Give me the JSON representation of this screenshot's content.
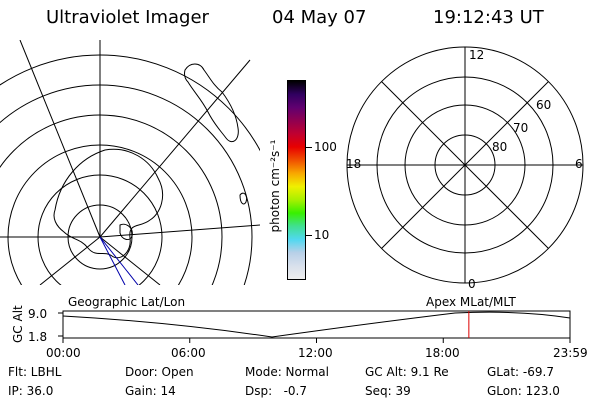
{
  "header": {
    "title": "Ultraviolet Imager",
    "date": "04 May 07",
    "time": "19:12:43 UT"
  },
  "geo_panel": {
    "label": "Geographic Lat/Lon"
  },
  "colorbar": {
    "unit_label": "photon cm⁻²s⁻¹",
    "tick_100": "100",
    "tick_10": "10",
    "colors": [
      "#eeeeee",
      "#d8e0ec",
      "#b8d0e8",
      "#50d8f0",
      "#40e090",
      "#38f000",
      "#a8f000",
      "#f0f000",
      "#f8a800",
      "#f05000",
      "#e80000",
      "#c00030",
      "#900050",
      "#600070",
      "#300060",
      "#000000"
    ]
  },
  "polar_panel": {
    "label": "Apex MLat/MLT",
    "mlt_12": "12",
    "mlt_18": "18",
    "mlt_6": "6",
    "mlt_0": "0",
    "lat_60": "60",
    "lat_70": "70",
    "lat_80": "80"
  },
  "gc_alt_plot": {
    "axis_label": "GC Alt",
    "y_top": "9.0",
    "y_bottom": "1.8",
    "x_ticks": [
      "00:00",
      "06:00",
      "12:00",
      "18:00",
      "23:59"
    ],
    "marker_time_hours": 19.212,
    "marker_color": "#dd0000"
  },
  "info": {
    "flt": "Flt: LBHL",
    "ip": "IP: 36.0",
    "door": "Door: Open",
    "gain": "Gain: 14",
    "mode": "Mode: Normal",
    "dsp": "Dsp:   -0.7",
    "gc_alt": "GC Alt: 9.1 Re",
    "seq": "Seq: 39",
    "glat": "GLat: -69.7",
    "glon": "GLon: 123.0"
  }
}
